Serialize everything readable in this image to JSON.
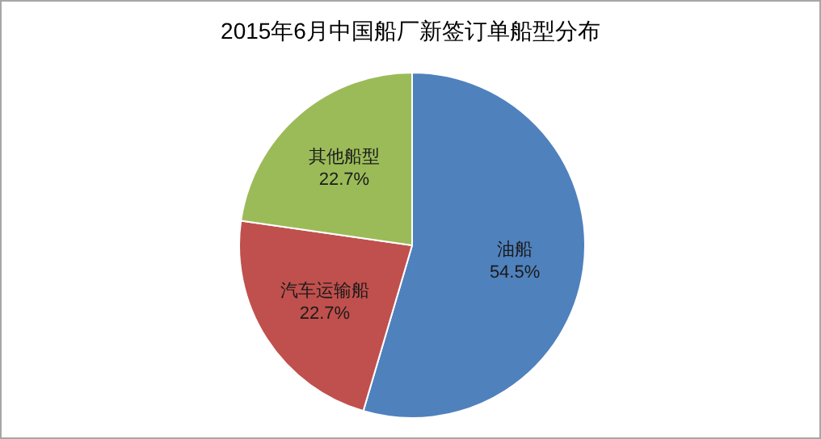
{
  "chart_data": {
    "type": "pie",
    "title": "2015年6月中国船厂新签订单船型分布",
    "categories": [
      "油船",
      "汽车运输船",
      "其他船型"
    ],
    "values": [
      54.5,
      22.7,
      22.7
    ],
    "value_labels": [
      "54.5%",
      "22.7%",
      "22.7%"
    ],
    "colors": [
      "#4f81bd",
      "#c0504d",
      "#9bbb59"
    ]
  }
}
